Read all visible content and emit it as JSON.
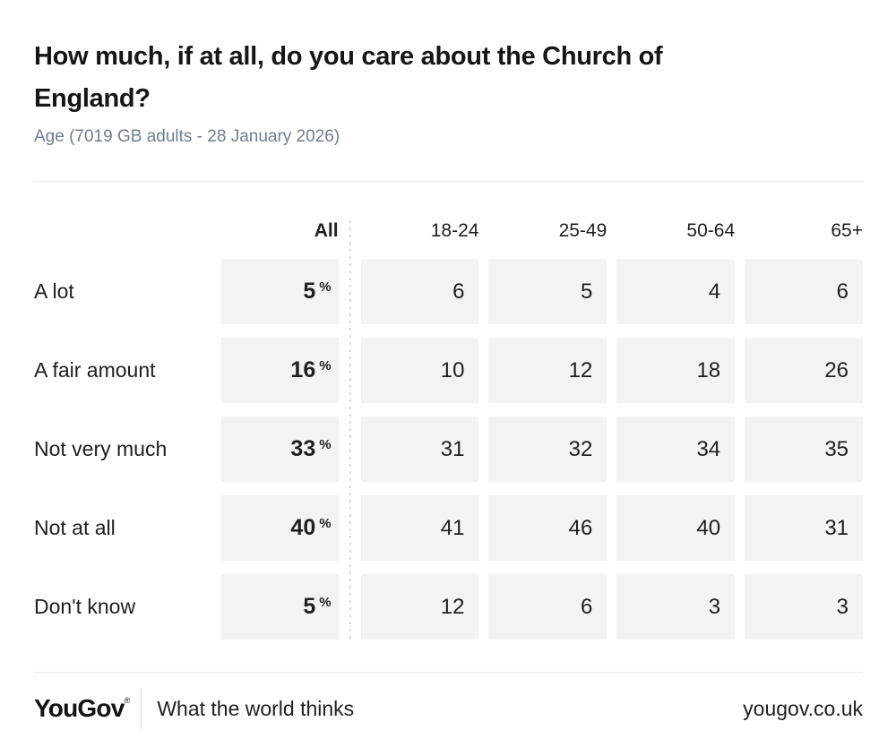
{
  "chart_data": {
    "type": "table",
    "title": "How much, if at all, do you care about the Church of England?",
    "subtitle": "Age (7019 GB adults - 28 January 2026)",
    "unit": "%",
    "columns": [
      "All",
      "18-24",
      "25-49",
      "50-64",
      "65+"
    ],
    "rows": [
      {
        "label": "A lot",
        "all": 5,
        "values": [
          6,
          5,
          4,
          6
        ]
      },
      {
        "label": "A fair amount",
        "all": 16,
        "values": [
          10,
          12,
          18,
          26
        ]
      },
      {
        "label": "Not very much",
        "all": 33,
        "values": [
          31,
          32,
          34,
          35
        ]
      },
      {
        "label": "Not at all",
        "all": 40,
        "values": [
          41,
          46,
          40,
          31
        ]
      },
      {
        "label": "Don't know",
        "all": 5,
        "values": [
          12,
          6,
          3,
          3
        ]
      }
    ]
  },
  "footer": {
    "logo": "YouGov",
    "registered_mark": "®",
    "tagline": "What the world thinks",
    "url": "yougov.co.uk"
  },
  "colors": {
    "cell_background": "#F2F3F5",
    "subtitle_text": "#6E7E8F",
    "title_text": "#141619",
    "rule": "#E9E9E9"
  }
}
